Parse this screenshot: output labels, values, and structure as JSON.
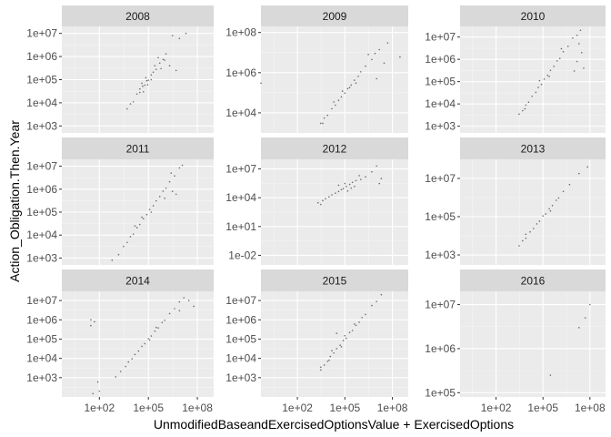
{
  "colors": {
    "panel_bg": "#ebebeb",
    "strip_bg": "#d9d9d9",
    "grid_major": "#ffffff",
    "grid_minor": "#f5f5f5",
    "tick": "#333333",
    "point": "#000000"
  },
  "chart_data": {
    "type": "scatter",
    "facet_by": "year",
    "x_axis": {
      "label": "UnmodifiedBaseandExercisedOptionsValue + ExercisedOptions",
      "scale": "log10",
      "ticks": [
        100,
        100000,
        100000000
      ],
      "tick_labels": [
        "1e+02",
        "1e+05",
        "1e+08"
      ],
      "range": [
        0.5,
        1000000000
      ]
    },
    "y_axis": {
      "label": "Action_Obligation.Then.Year",
      "scale": "log10",
      "shared": false
    },
    "grid": true,
    "panels": [
      {
        "title": "2008",
        "y_ticks": [
          1000,
          10000,
          100000,
          1000000,
          10000000
        ],
        "y_tick_labels": [
          "1e+03",
          "1e+04",
          "1e+05",
          "1e+06",
          "1e+07"
        ],
        "y_range": [
          500,
          20000000
        ],
        "points": [
          [
            5000,
            5500
          ],
          [
            8000,
            9000
          ],
          [
            12000,
            11000
          ],
          [
            20000,
            24000
          ],
          [
            30000,
            28000
          ],
          [
            45000,
            52000
          ],
          [
            60000,
            58000
          ],
          [
            80000,
            90000
          ],
          [
            100000,
            95000
          ],
          [
            150000,
            160000
          ],
          [
            200000,
            210000
          ],
          [
            300000,
            280000
          ],
          [
            500000,
            520000
          ],
          [
            800000,
            750000
          ],
          [
            1200000,
            1300000
          ],
          [
            50000,
            30000
          ],
          [
            70000,
            120000
          ],
          [
            250000,
            400000
          ],
          [
            3000000,
            8000000
          ],
          [
            8000000,
            6000000
          ],
          [
            2000000,
            400000
          ],
          [
            5000000,
            250000
          ],
          [
            40000,
            70000
          ],
          [
            90000,
            60000
          ],
          [
            400000,
            900000
          ],
          [
            20000000,
            10000000
          ],
          [
            30000,
            40000
          ],
          [
            150000,
            100000
          ],
          [
            600000,
            300000
          ],
          [
            1000000,
            700000
          ]
        ]
      },
      {
        "title": "2009",
        "y_ticks": [
          10000,
          1000000,
          100000000
        ],
        "y_tick_labels": [
          "1e+04",
          "1e+06",
          "1e+08"
        ],
        "y_range": [
          1000,
          200000000
        ],
        "points": [
          [
            3000,
            3000
          ],
          [
            5000,
            5500
          ],
          [
            8000,
            7500
          ],
          [
            15000,
            16000
          ],
          [
            25000,
            24000
          ],
          [
            40000,
            42000
          ],
          [
            60000,
            62000
          ],
          [
            100000,
            95000
          ],
          [
            150000,
            160000
          ],
          [
            250000,
            240000
          ],
          [
            400000,
            420000
          ],
          [
            700000,
            650000
          ],
          [
            1000000,
            1100000
          ],
          [
            2000000,
            2100000
          ],
          [
            5000000,
            4500000
          ],
          [
            8000000,
            9000000
          ],
          [
            15000000,
            14000000
          ],
          [
            50000000,
            30000000
          ],
          [
            300000000,
            6000000
          ],
          [
            0.5,
            300000
          ],
          [
            30000000,
            3000000
          ],
          [
            20000,
            35000
          ],
          [
            500000,
            300000
          ],
          [
            10000000,
            500000
          ],
          [
            70000,
            120000
          ],
          [
            4000,
            3000
          ],
          [
            3000000,
            8000000
          ],
          [
            200000,
            180000
          ]
        ]
      },
      {
        "title": "2010",
        "y_ticks": [
          1000,
          10000,
          100000,
          1000000,
          10000000
        ],
        "y_tick_labels": [
          "1e+03",
          "1e+04",
          "1e+05",
          "1e+06",
          "1e+07"
        ],
        "y_range": [
          500,
          30000000
        ],
        "points": [
          [
            3000,
            3500
          ],
          [
            5000,
            5000
          ],
          [
            8000,
            9000
          ],
          [
            12000,
            12000
          ],
          [
            20000,
            22000
          ],
          [
            35000,
            33000
          ],
          [
            50000,
            55000
          ],
          [
            80000,
            75000
          ],
          [
            120000,
            130000
          ],
          [
            200000,
            190000
          ],
          [
            300000,
            320000
          ],
          [
            500000,
            480000
          ],
          [
            800000,
            850000
          ],
          [
            1200000,
            1100000
          ],
          [
            2000000,
            2200000
          ],
          [
            4000000,
            3800000
          ],
          [
            8000000,
            9000000
          ],
          [
            15000000,
            12000000
          ],
          [
            25000000,
            20000000
          ],
          [
            15000000,
            800000
          ],
          [
            30000000,
            2000000
          ],
          [
            40000000,
            400000
          ],
          [
            10000000,
            300000
          ],
          [
            60000,
            110000
          ],
          [
            250000,
            170000
          ],
          [
            1500000,
            3000000
          ],
          [
            20000000,
            5000000
          ],
          [
            7000,
            6000
          ]
        ]
      },
      {
        "title": "2011",
        "y_ticks": [
          1000,
          10000,
          100000,
          1000000,
          10000000
        ],
        "y_tick_labels": [
          "1e+03",
          "1e+04",
          "1e+05",
          "1e+06",
          "1e+07"
        ],
        "y_range": [
          500,
          20000000
        ],
        "points": [
          [
            1500,
            1400
          ],
          [
            3000,
            3200
          ],
          [
            5000,
            4800
          ],
          [
            8000,
            8500
          ],
          [
            12000,
            11000
          ],
          [
            20000,
            21000
          ],
          [
            30000,
            29000
          ],
          [
            50000,
            52000
          ],
          [
            80000,
            78000
          ],
          [
            120000,
            130000
          ],
          [
            200000,
            190000
          ],
          [
            300000,
            310000
          ],
          [
            500000,
            480000
          ],
          [
            800000,
            820000
          ],
          [
            1200000,
            1100000
          ],
          [
            2000000,
            2100000
          ],
          [
            4000000,
            3800000
          ],
          [
            8000000,
            8500000
          ],
          [
            12000000,
            11000000
          ],
          [
            5000000,
            600000
          ],
          [
            3000000,
            800000
          ],
          [
            1000000,
            400000
          ],
          [
            600,
            800
          ],
          [
            15000,
            25000
          ],
          [
            150000,
            100000
          ],
          [
            40000,
            60000
          ],
          [
            2500000,
            5000000
          ]
        ]
      },
      {
        "title": "2012",
        "y_ticks": [
          0.01,
          10,
          10000,
          10000000
        ],
        "y_tick_labels": [
          "1e-02",
          "1e+01",
          "1e+04",
          "1e+07"
        ],
        "y_range": [
          0.001,
          100000000
        ],
        "points": [
          [
            2000,
            3000
          ],
          [
            4000,
            5000
          ],
          [
            6000,
            8000
          ],
          [
            10000,
            12000
          ],
          [
            15000,
            20000
          ],
          [
            25000,
            30000
          ],
          [
            40000,
            45000
          ],
          [
            60000,
            70000
          ],
          [
            80000,
            90000
          ],
          [
            120000,
            150000
          ],
          [
            200000,
            250000
          ],
          [
            300000,
            400000
          ],
          [
            500000,
            600000
          ],
          [
            1000000,
            800000
          ],
          [
            2000000,
            1500000
          ],
          [
            5000000,
            5000000
          ],
          [
            10000000,
            20000000
          ],
          [
            20000000,
            1000000
          ],
          [
            150000,
            50000
          ],
          [
            250000,
            100000
          ],
          [
            40000,
            200000
          ],
          [
            800000,
            2000000
          ],
          [
            15000000,
            300000
          ],
          [
            3000,
            2000
          ],
          [
            100000,
            300000
          ],
          [
            400000,
            150000
          ]
        ]
      },
      {
        "title": "2013",
        "y_ticks": [
          1000,
          100000,
          10000000
        ],
        "y_tick_labels": [
          "1e+03",
          "1e+05",
          "1e+07"
        ],
        "y_range": [
          300,
          100000000
        ],
        "points": [
          [
            3000,
            3000
          ],
          [
            5000,
            5500
          ],
          [
            8000,
            7500
          ],
          [
            15000,
            16000
          ],
          [
            25000,
            24000
          ],
          [
            40000,
            42000
          ],
          [
            60000,
            58000
          ],
          [
            100000,
            110000
          ],
          [
            150000,
            140000
          ],
          [
            250000,
            260000
          ],
          [
            400000,
            380000
          ],
          [
            700000,
            720000
          ],
          [
            1000000,
            950000
          ],
          [
            2000000,
            2100000
          ],
          [
            5000000,
            4800000
          ],
          [
            20000000,
            18000000
          ],
          [
            70000000,
            40000000
          ],
          [
            8000,
            12000
          ],
          [
            300000,
            200000
          ]
        ]
      },
      {
        "title": "2014",
        "y_ticks": [
          1000,
          10000,
          100000,
          1000000,
          10000000
        ],
        "y_tick_labels": [
          "1e+03",
          "1e+04",
          "1e+05",
          "1e+06",
          "1e+07"
        ],
        "y_range": [
          100,
          30000000
        ],
        "points": [
          [
            1000,
            1100
          ],
          [
            2000,
            2100
          ],
          [
            4000,
            3800
          ],
          [
            6000,
            6500
          ],
          [
            10000,
            9500
          ],
          [
            15000,
            16000
          ],
          [
            25000,
            24000
          ],
          [
            40000,
            42000
          ],
          [
            60000,
            58000
          ],
          [
            100000,
            105000
          ],
          [
            150000,
            145000
          ],
          [
            250000,
            260000
          ],
          [
            400000,
            380000
          ],
          [
            700000,
            720000
          ],
          [
            1000000,
            950000
          ],
          [
            2000000,
            2100000
          ],
          [
            4000000,
            3800000
          ],
          [
            8000000,
            8500000
          ],
          [
            15000000,
            14000000
          ],
          [
            30,
            1000000
          ],
          [
            30,
            500000
          ],
          [
            50,
            800000
          ],
          [
            100,
            200
          ],
          [
            40,
            150
          ],
          [
            80,
            600
          ],
          [
            30000000,
            10000000
          ],
          [
            60000000,
            5000000
          ],
          [
            8000000,
            3000000
          ],
          [
            120000,
            90000
          ],
          [
            300000,
            400000
          ]
        ]
      },
      {
        "title": "2015",
        "y_ticks": [
          1000,
          10000,
          100000,
          1000000,
          10000000
        ],
        "y_tick_labels": [
          "1e+03",
          "1e+04",
          "1e+05",
          "1e+06",
          "1e+07"
        ],
        "y_range": [
          100,
          30000000
        ],
        "points": [
          [
            3000,
            2500
          ],
          [
            5000,
            4500
          ],
          [
            8000,
            7000
          ],
          [
            12000,
            12500
          ],
          [
            20000,
            19000
          ],
          [
            30000,
            32000
          ],
          [
            50000,
            48000
          ],
          [
            80000,
            85000
          ],
          [
            120000,
            110000
          ],
          [
            200000,
            220000
          ],
          [
            300000,
            280000
          ],
          [
            500000,
            520000
          ],
          [
            800000,
            750000
          ],
          [
            1200000,
            1300000
          ],
          [
            2000000,
            1900000
          ],
          [
            5000000,
            5500000
          ],
          [
            10000000,
            9000000
          ],
          [
            20000000,
            20000000
          ],
          [
            30000,
            200000
          ],
          [
            10000,
            8000
          ],
          [
            60000,
            40000
          ],
          [
            400000,
            600000
          ],
          [
            15000,
            25000
          ],
          [
            3000,
            3500
          ],
          [
            100000,
            150000
          ]
        ]
      },
      {
        "title": "2016",
        "y_ticks": [
          100000,
          1000000,
          10000000
        ],
        "y_tick_labels": [
          "1e+05",
          "1e+06",
          "1e+07"
        ],
        "y_range": [
          80000,
          20000000
        ],
        "points": [
          [
            100000000,
            10000000
          ],
          [
            300000,
            250000
          ],
          [
            20000000,
            3000000
          ],
          [
            50000000,
            5000000
          ]
        ]
      }
    ]
  }
}
